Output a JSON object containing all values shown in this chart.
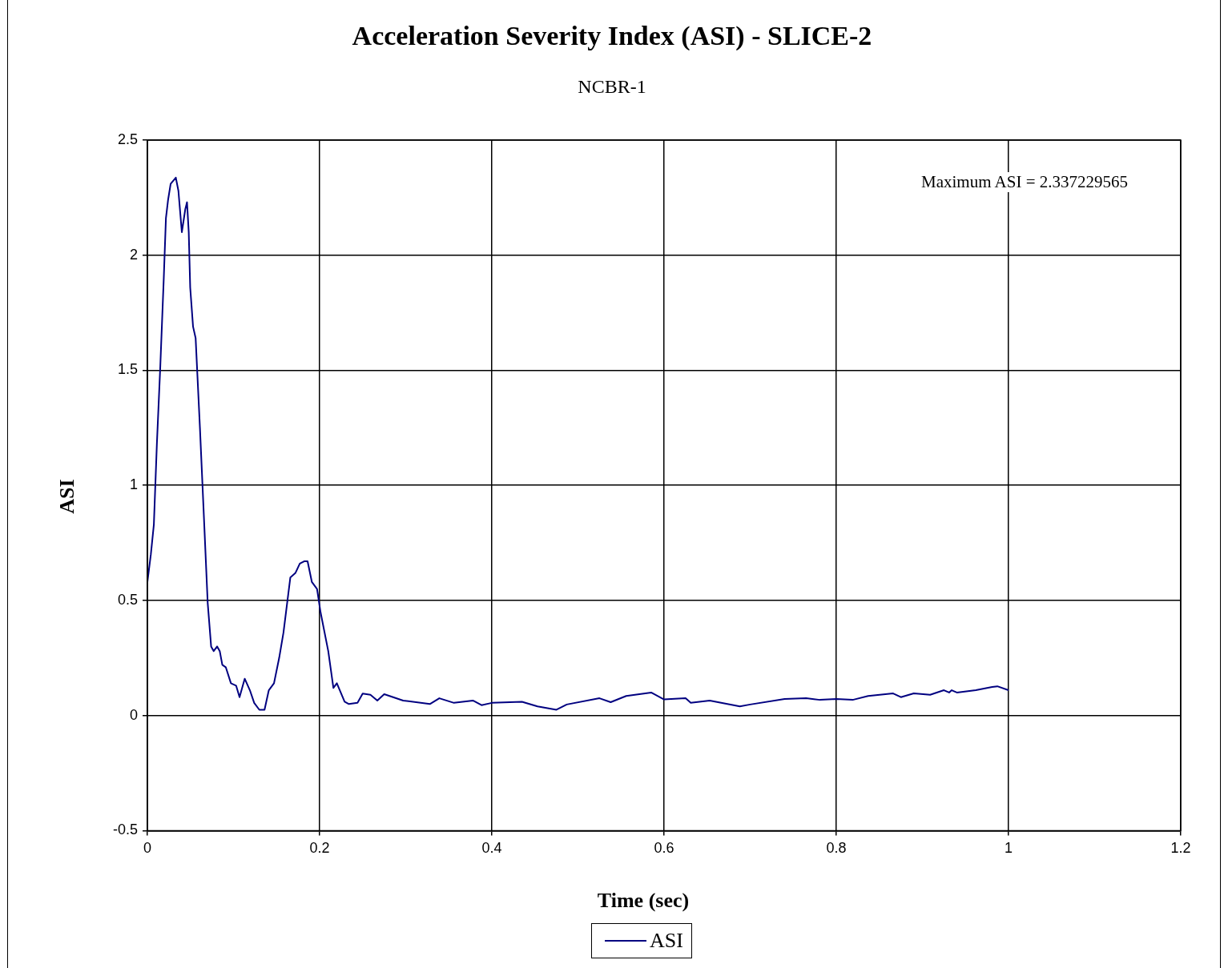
{
  "chart_data": {
    "type": "line",
    "title": "Acceleration Severity Index (ASI) - SLICE-2",
    "subtitle": "NCBR-1",
    "xlabel": "Time (sec)",
    "ylabel": "ASI",
    "annotations": [
      "Maximum  ASI = 2.337229565"
    ],
    "xlim": [
      0,
      1.2
    ],
    "xticks": [
      0,
      0.2,
      0.4,
      0.6,
      0.8,
      1,
      1.2
    ],
    "ylim": [
      -0.5,
      2.5
    ],
    "yticks": [
      -0.5,
      0,
      0.5,
      1,
      1.5,
      2,
      2.5
    ],
    "grid": true,
    "legend": "bottom",
    "marker": "none",
    "line_style": "solid",
    "series": [
      {
        "name": "ASI",
        "color": "#000080",
        "x": [
          0,
          0.004,
          0.0075,
          0.011,
          0.015,
          0.019,
          0.0215,
          0.024,
          0.027,
          0.033,
          0.036,
          0.04,
          0.044,
          0.046,
          0.048,
          0.0497,
          0.053,
          0.056,
          0.061,
          0.066,
          0.07,
          0.074,
          0.077,
          0.081,
          0.084,
          0.087,
          0.091,
          0.097,
          0.103,
          0.107,
          0.113,
          0.119,
          0.124,
          0.13,
          0.136,
          0.141,
          0.147,
          0.153,
          0.158,
          0.166,
          0.172,
          0.177,
          0.182,
          0.186,
          0.191,
          0.197,
          0.201,
          0.21,
          0.216,
          0.22,
          0.229,
          0.234,
          0.244,
          0.25,
          0.259,
          0.267,
          0.275,
          0.297,
          0.328,
          0.339,
          0.356,
          0.378,
          0.388,
          0.4,
          0.435,
          0.453,
          0.475,
          0.487,
          0.525,
          0.538,
          0.556,
          0.585,
          0.6,
          0.625,
          0.631,
          0.653,
          0.688,
          0.7,
          0.74,
          0.765,
          0.781,
          0.8,
          0.819,
          0.837,
          0.866,
          0.875,
          0.89,
          0.909,
          0.925,
          0.931,
          0.934,
          0.94,
          0.962,
          0.981,
          0.987,
          1
        ],
        "values": [
          0.58,
          0.7,
          0.83,
          1.18,
          1.52,
          1.9,
          2.16,
          2.24,
          2.31,
          2.337,
          2.28,
          2.1,
          2.2,
          2.23,
          2.1,
          1.86,
          1.69,
          1.64,
          1.25,
          0.83,
          0.49,
          0.3,
          0.28,
          0.3,
          0.28,
          0.22,
          0.21,
          0.14,
          0.13,
          0.08,
          0.16,
          0.11,
          0.055,
          0.025,
          0.025,
          0.11,
          0.14,
          0.25,
          0.36,
          0.6,
          0.62,
          0.66,
          0.67,
          0.67,
          0.58,
          0.55,
          0.45,
          0.28,
          0.12,
          0.14,
          0.06,
          0.05,
          0.055,
          0.095,
          0.09,
          0.065,
          0.093,
          0.065,
          0.05,
          0.075,
          0.055,
          0.065,
          0.045,
          0.055,
          0.06,
          0.04,
          0.025,
          0.048,
          0.075,
          0.058,
          0.085,
          0.1,
          0.07,
          0.075,
          0.055,
          0.065,
          0.04,
          0.048,
          0.072,
          0.075,
          0.068,
          0.072,
          0.068,
          0.085,
          0.096,
          0.08,
          0.096,
          0.09,
          0.11,
          0.1,
          0.11,
          0.1,
          0.11,
          0.124,
          0.127,
          0.11
        ]
      }
    ]
  }
}
